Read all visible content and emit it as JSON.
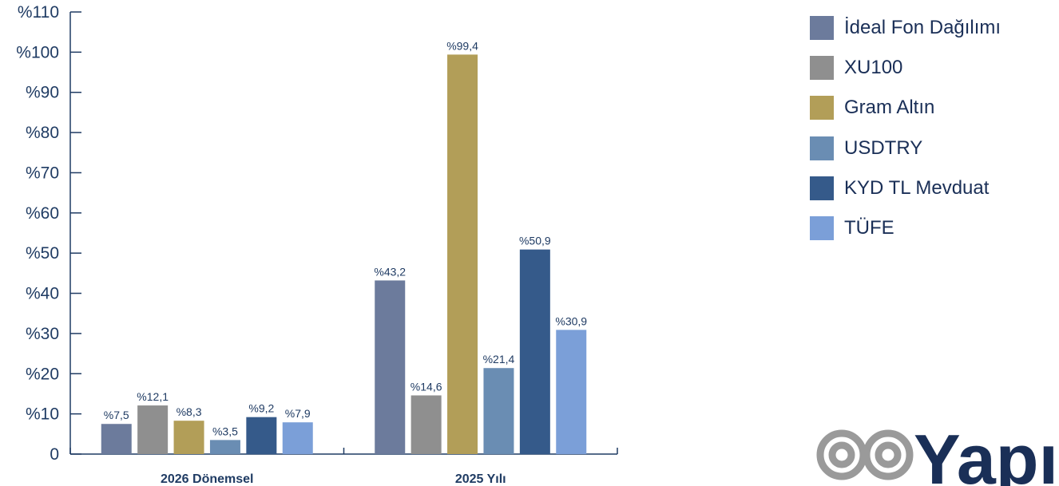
{
  "chart_data": {
    "type": "bar",
    "categories": [
      "2026 Dönemsel",
      "2025 Yılı"
    ],
    "series": [
      {
        "name": "İdeal Fon Dağılımı",
        "color": "#6c7b9c",
        "values": [
          7.5,
          43.2
        ],
        "labels": [
          "%7,5",
          "%43,2"
        ]
      },
      {
        "name": "XU100",
        "color": "#8f8f8f",
        "values": [
          12.1,
          14.6
        ],
        "labels": [
          "%12,1",
          "%14,6"
        ]
      },
      {
        "name": "Gram Altın",
        "color": "#b29e58",
        "values": [
          8.3,
          99.4
        ],
        "labels": [
          "%8,3",
          "%99,4"
        ]
      },
      {
        "name": "USDTRY",
        "color": "#6a8db3",
        "values": [
          3.5,
          21.4
        ],
        "labels": [
          "%3,5",
          "%21,4"
        ]
      },
      {
        "name": "KYD TL Mevduat",
        "color": "#355a8a",
        "values": [
          9.2,
          50.9
        ],
        "labels": [
          "%9,2",
          "%50,9"
        ]
      },
      {
        "name": "TÜFE",
        "color": "#7b9fd8",
        "values": [
          7.9,
          30.9
        ],
        "labels": [
          "%7,9",
          "%30,9"
        ]
      }
    ],
    "y_ticks": [
      0,
      10,
      20,
      30,
      40,
      50,
      60,
      70,
      80,
      90,
      100,
      110
    ],
    "y_tick_labels": [
      "0",
      "%10",
      "%20",
      "%30",
      "%40",
      "%50",
      "%60",
      "%70",
      "%80",
      "%90",
      "%100",
      "%110"
    ],
    "ylim": [
      0,
      110
    ],
    "grid": false,
    "legend_position": "top-right",
    "axis_color": "#1f3b63"
  },
  "logo": {
    "text": "Yapı",
    "name": "yapi-kredi-logo",
    "color": "#1a2f57",
    "symbol_color": "#9a9a9a"
  }
}
